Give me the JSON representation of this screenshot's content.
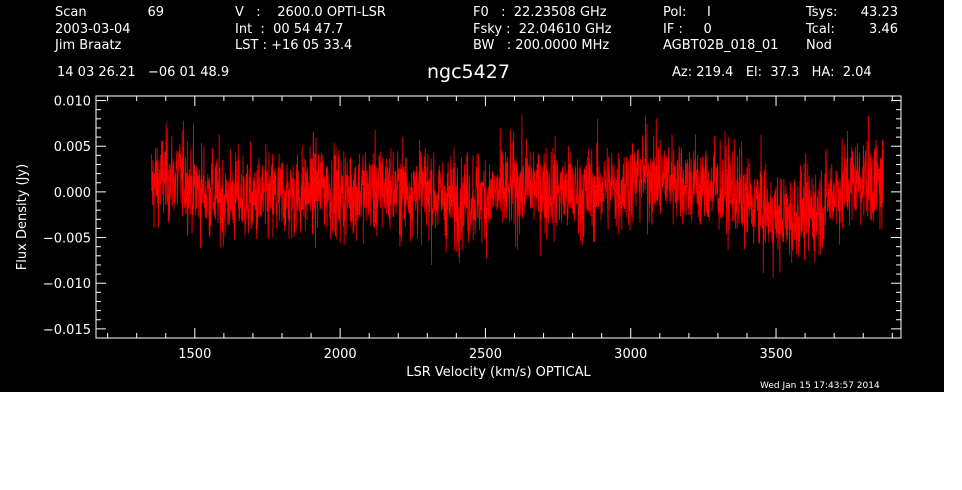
{
  "header": {
    "scan_label": "Scan",
    "scan_value": "69",
    "date": "2003-03-04",
    "observer": "Jim Braatz",
    "v_line": "V   :    2600.0 OPTI-LSR",
    "int_line": "Int  :  00 54 47.7",
    "lst_line": "LST : +16 05 33.4",
    "f0_line": "F0   :  22.23508 GHz",
    "fsky_line": "Fsky :  22.04610 GHz",
    "bw_line": "BW   : 200.0000 MHz",
    "pol_line": "Pol:     I",
    "if_line": "IF :     0",
    "proj": "AGBT02B_018_01",
    "tsys_label": "Tsys:",
    "tsys_value": "43.23",
    "tcal_label": "Tcal:",
    "tcal_value": "3.46",
    "nod": "Nod",
    "coords": "14 03 26.21   −06 01 48.9",
    "source": "ngc5427",
    "azelha": "Az: 219.4   El:  37.3   HA:  2.04"
  },
  "footer": {
    "timestamp": "Wed Jan 15 17:43:57 2014"
  },
  "colors": {
    "background": "#000000",
    "axes": "#ffffff",
    "series": "#ff0000"
  },
  "chart_data": {
    "type": "line",
    "title": "ngc5427",
    "xlabel": "LSR Velocity (km/s) OPTICAL",
    "ylabel": "Flux Density (Jy)",
    "xlim": [
      1160,
      3930
    ],
    "ylim": [
      -0.016,
      0.0105
    ],
    "x_ticks": [
      1500,
      2000,
      2500,
      3000,
      3500
    ],
    "x_tick_labels": [
      "1500",
      "2000",
      "2500",
      "3000",
      "3500"
    ],
    "y_ticks": [
      0.01,
      0.005,
      0.0,
      -0.005,
      -0.01,
      -0.015
    ],
    "y_tick_labels": [
      "0.010",
      "0.005",
      "0.000",
      "−0.005",
      "−0.010",
      "−0.015"
    ],
    "grid": false,
    "series": [
      {
        "x": [
          1350,
          1400,
          1450,
          1500,
          1550,
          1600,
          1650,
          1700,
          1750,
          1800,
          1850,
          1900,
          1950,
          2000,
          2050,
          2100,
          2150,
          2200,
          2250,
          2300,
          2350,
          2400,
          2450,
          2500,
          2550,
          2600,
          2650,
          2700,
          2750,
          2800,
          2850,
          2900,
          2950,
          3000,
          3050,
          3100,
          3150,
          3200,
          3250,
          3300,
          3350,
          3400,
          3450,
          3500,
          3550,
          3600,
          3650,
          3700,
          3750,
          3800,
          3850,
          3870
        ],
        "values": [
          0.0008,
          0.0015,
          0.0018,
          0.0005,
          -0.0002,
          -0.0008,
          -0.0005,
          -0.001,
          -0.0008,
          -0.0003,
          -0.0004,
          0.0002,
          0.0004,
          -0.0002,
          0.0,
          0.0003,
          0.0004,
          0.0001,
          0.0003,
          0.0002,
          -0.0008,
          -0.001,
          -0.0005,
          -0.0006,
          -0.0002,
          0.0004,
          0.0008,
          0.0005,
          0.0001,
          -0.0004,
          -0.0002,
          0.0006,
          0.0004,
          0.001,
          0.002,
          0.0012,
          0.0018,
          0.001,
          0.0006,
          0.0004,
          0.0002,
          -0.0012,
          -0.0018,
          -0.003,
          -0.0028,
          -0.0022,
          -0.0018,
          0.0,
          0.001,
          0.0015,
          0.0008,
          0.001
        ],
        "noise_rms": 0.0025
      }
    ]
  }
}
